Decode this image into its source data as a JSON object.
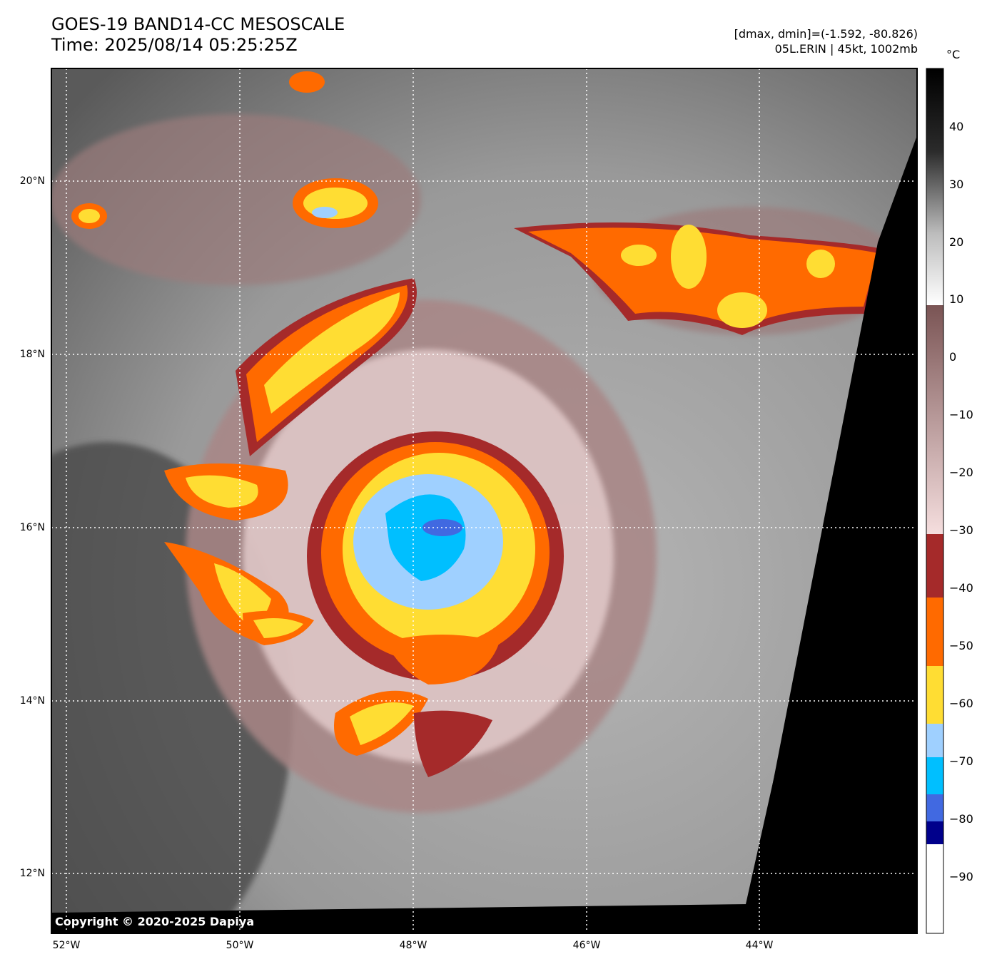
{
  "title": {
    "line1": "GOES-19 BAND14-CC MESOSCALE",
    "line2": "Time: 2025/08/14 05:25:25Z"
  },
  "info": {
    "line1": "[dmax, dmin]=(-1.592, -80.826)",
    "line2": "05L.ERIN | 45kt, 1002mb"
  },
  "colorbar": {
    "unit": "°C",
    "ticks": [
      "40",
      "30",
      "20",
      "10",
      "0",
      "−10",
      "−20",
      "−30",
      "−40",
      "−50",
      "−60",
      "−70",
      "−80",
      "−90"
    ],
    "stops": [
      {
        "from": 50,
        "to": 8,
        "color": "grayscale"
      },
      {
        "from": 8,
        "to": -30,
        "color": "#8b5e5e"
      },
      {
        "from": -30,
        "to": -41,
        "color": "#a52a2a"
      },
      {
        "from": -41,
        "to": -53,
        "color": "#ff6a00"
      },
      {
        "from": -53,
        "to": -63,
        "color": "#ffdd33"
      },
      {
        "from": -63,
        "to": -69,
        "color": "#9fd0ff"
      },
      {
        "from": -69,
        "to": -76,
        "color": "#00bfff"
      },
      {
        "from": -76,
        "to": -80,
        "color": "#4169e1"
      },
      {
        "from": -80,
        "to": -84,
        "color": "#00008b"
      },
      {
        "from": -84,
        "to": -100,
        "color": "#ffffff"
      }
    ]
  },
  "latitudes": [
    "20°N",
    "18°N",
    "16°N",
    "14°N",
    "12°N"
  ],
  "longitudes": [
    "52°W",
    "50°W",
    "48°W",
    "46°W",
    "44°W"
  ],
  "copyright": "Copyright © 2020-2025 Dapiya",
  "storm": {
    "name": "05L.ERIN",
    "intensity_kt": 45,
    "pressure_mb": 1002
  }
}
